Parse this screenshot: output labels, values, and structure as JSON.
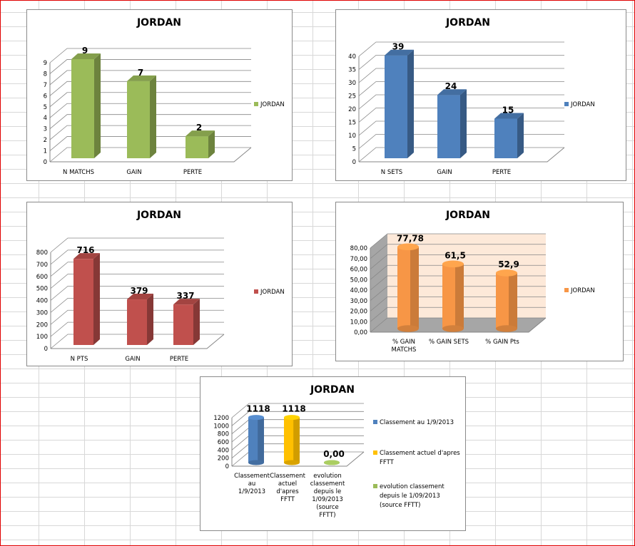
{
  "chart_data": [
    {
      "type": "bar",
      "title": "JORDAN",
      "categories": [
        "N MATCHS",
        "GAIN",
        "PERTE"
      ],
      "series": [
        {
          "name": "JORDAN",
          "values": [
            9,
            7,
            2
          ]
        }
      ],
      "data_labels": [
        "9",
        "7",
        "2"
      ],
      "yticks": [
        "0",
        "1",
        "2",
        "3",
        "4",
        "5",
        "6",
        "7",
        "8",
        "9"
      ],
      "ylim": [
        0,
        9
      ],
      "color": "#9bbb59",
      "legend": "right",
      "grid": true
    },
    {
      "type": "bar",
      "title": "JORDAN",
      "categories": [
        "N SETS",
        "GAIN",
        "PERTE"
      ],
      "series": [
        {
          "name": "JORDAN",
          "values": [
            39,
            24,
            15
          ]
        }
      ],
      "data_labels": [
        "39",
        "24",
        "15"
      ],
      "yticks": [
        "0",
        "5",
        "10",
        "15",
        "20",
        "25",
        "30",
        "35",
        "40"
      ],
      "ylim": [
        0,
        40
      ],
      "color": "#4f81bd",
      "legend": "right",
      "grid": true
    },
    {
      "type": "bar",
      "title": "JORDAN",
      "categories": [
        "N PTS",
        "GAIN",
        "PERTE"
      ],
      "series": [
        {
          "name": "JORDAN",
          "values": [
            716,
            379,
            337
          ]
        }
      ],
      "data_labels": [
        "716",
        "379",
        "337"
      ],
      "yticks": [
        "0",
        "100",
        "200",
        "300",
        "400",
        "500",
        "600",
        "700",
        "800"
      ],
      "ylim": [
        0,
        800
      ],
      "color": "#c0504d",
      "legend": "right",
      "grid": true
    },
    {
      "type": "bar",
      "title": "JORDAN",
      "categories": [
        [
          "% GAIN",
          "MATCHS"
        ],
        [
          "% GAIN SETS"
        ],
        [
          "% GAIN Pts"
        ]
      ],
      "series": [
        {
          "name": "JORDAN",
          "values": [
            77.78,
            61.5,
            52.9
          ]
        }
      ],
      "data_labels": [
        "77,78",
        "61,5",
        "52,9"
      ],
      "yticks": [
        "0,00",
        "10,00",
        "20,00",
        "30,00",
        "40,00",
        "50,00",
        "60,00",
        "70,00",
        "80,00"
      ],
      "ylim": [
        0,
        80
      ],
      "color": "#f79646",
      "legend": "right",
      "grid": true,
      "shape": "cylinder"
    },
    {
      "type": "bar",
      "title": "JORDAN",
      "categories": [
        [
          "Classement",
          "au",
          "1/9/2013"
        ],
        [
          "Classement",
          "actuel",
          "d'apres",
          "FFTT"
        ],
        [
          "evolution",
          "classement",
          "depuis le",
          "1/09/2013",
          "(source",
          "FFTT)"
        ]
      ],
      "series": [
        {
          "name": "Classement au 1/9/2013",
          "values": [
            1118,
            null,
            null
          ],
          "color": "#4f81bd"
        },
        {
          "name": "Classement actuel d'apres FFTT",
          "values": [
            null,
            1118,
            null
          ],
          "color": "#ffc000"
        },
        {
          "name": "evolution classement depuis le 1/09/2013 (source FFTT)",
          "values": [
            null,
            null,
            0
          ],
          "color": "#9bbb59"
        }
      ],
      "values": [
        1118,
        1118,
        0
      ],
      "data_labels": [
        "1118",
        "1118",
        "0,00"
      ],
      "legend_lines": [
        [
          "Classement au 1/9/2013"
        ],
        [
          "Classement actuel d'apres",
          "FFTT"
        ],
        [
          "evolution classement",
          "depuis le 1/09/2013",
          "(source FFTT)"
        ]
      ],
      "yticks": [
        "0",
        "200",
        "400",
        "600",
        "800",
        "1000",
        "1200"
      ],
      "ylim": [
        0,
        1200
      ],
      "legend": "right",
      "grid": true,
      "shape": "cylinder"
    }
  ]
}
